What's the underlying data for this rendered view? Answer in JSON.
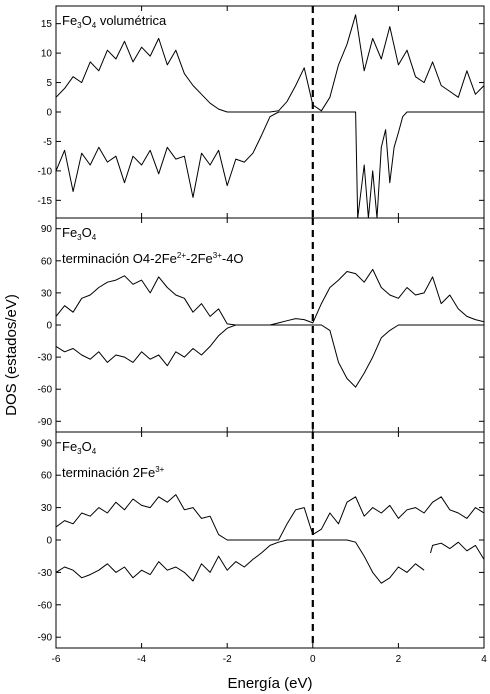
{
  "chart_data": {
    "type": "line",
    "xlabel": "Energía (eV)",
    "ylabel": "DOS (estados/eV)",
    "xlim": [
      -6,
      4
    ],
    "x_ticks": [
      "-6",
      "-4",
      "-2",
      "0",
      "2",
      "4"
    ],
    "reference_line": {
      "x": 0,
      "style": "dashed"
    },
    "legend": "none",
    "grid": false,
    "panels": [
      {
        "label_parts": [
          "Fe",
          "3",
          "O",
          "4",
          " volumétrica"
        ],
        "label_line2_parts": [],
        "ylim": [
          -18,
          18
        ],
        "y_ticks": [
          "-15",
          "-10",
          "-5",
          "0",
          "5",
          "10",
          "15"
        ],
        "series": [
          {
            "spin": "up",
            "segments": [
              {
                "x": [
                  -6.0,
                  -5.8,
                  -5.6,
                  -5.4,
                  -5.2,
                  -5.0,
                  -4.8,
                  -4.6,
                  -4.4,
                  -4.2,
                  -4.0,
                  -3.8,
                  -3.6,
                  -3.4,
                  -3.2,
                  -3.0,
                  -2.8,
                  -2.6,
                  -2.4,
                  -2.2,
                  -2.0,
                  -1.8,
                  -1.6,
                  -1.4,
                  -1.2,
                  -1.0,
                  -0.8,
                  -0.6,
                  -0.4,
                  -0.2,
                  0.0,
                  0.2,
                  0.4,
                  0.6,
                  0.8,
                  1.0,
                  1.2,
                  1.4,
                  1.6,
                  1.8,
                  2.0,
                  2.2,
                  2.4,
                  2.6,
                  2.8,
                  3.0,
                  3.2,
                  3.4,
                  3.6,
                  3.8,
                  4.0
                ],
                "y": [
                  2.5,
                  4.0,
                  6.0,
                  5.0,
                  8.5,
                  7.0,
                  10.5,
                  9.0,
                  12.0,
                  8.5,
                  11.0,
                  9.5,
                  12.5,
                  8.0,
                  10.5,
                  6.5,
                  4.5,
                  3.0,
                  1.5,
                  0.5,
                  0.0,
                  0.0,
                  0.0,
                  0.0,
                  0.0,
                  0.0,
                  0.2,
                  1.8,
                  4.5,
                  7.5,
                  1.2,
                  0.2,
                  2.5,
                  8.0,
                  11.5,
                  16.5,
                  7.0,
                  12.5,
                  9.0,
                  14.5,
                  8.0,
                  10.5,
                  6.0,
                  5.0,
                  8.5,
                  4.5,
                  3.5,
                  2.5,
                  7.0,
                  3.0,
                  4.5
                ]
              }
            ]
          },
          {
            "spin": "down",
            "segments": [
              {
                "x": [
                  -6.0,
                  -5.8,
                  -5.6,
                  -5.4,
                  -5.2,
                  -5.0,
                  -4.8,
                  -4.6,
                  -4.4,
                  -4.2,
                  -4.0,
                  -3.8,
                  -3.6,
                  -3.4,
                  -3.2,
                  -3.0,
                  -2.8,
                  -2.6,
                  -2.4,
                  -2.2,
                  -2.0,
                  -1.8,
                  -1.6,
                  -1.4,
                  -1.2,
                  -1.0,
                  -0.8,
                  -0.6,
                  -0.4,
                  -0.2,
                  0.0,
                  0.2,
                  0.4,
                  0.6,
                  0.8,
                  1.0,
                  1.05,
                  1.2,
                  1.3,
                  1.4,
                  1.5,
                  1.6,
                  1.7,
                  1.8,
                  1.9,
                  2.0,
                  2.1,
                  2.2,
                  2.4,
                  2.6,
                  2.8,
                  3.0,
                  3.2,
                  3.4,
                  3.6,
                  3.8,
                  4.0
                ],
                "y": [
                  -10.0,
                  -6.5,
                  -13.5,
                  -7.0,
                  -9.0,
                  -6.0,
                  -8.5,
                  -7.5,
                  -12.0,
                  -7.5,
                  -9.0,
                  -6.5,
                  -10.5,
                  -6.0,
                  -8.0,
                  -7.5,
                  -14.5,
                  -7.0,
                  -9.0,
                  -6.5,
                  -12.5,
                  -8.0,
                  -8.5,
                  -7.0,
                  -4.0,
                  -0.8,
                  0.0,
                  0.0,
                  0.0,
                  0.0,
                  0.0,
                  0.0,
                  0.0,
                  0.0,
                  0.0,
                  0.0,
                  -18.0,
                  -9.0,
                  -18.0,
                  -10.0,
                  -18.0,
                  -6.0,
                  -3.0,
                  -12.0,
                  -6.0,
                  -3.5,
                  -0.8,
                  0.0,
                  0.0,
                  0.0,
                  0.0,
                  0.0,
                  0.0,
                  0.0,
                  0.0,
                  0.0,
                  0.0
                ]
              }
            ]
          }
        ]
      },
      {
        "label_parts": [
          "Fe",
          "3",
          "O",
          "4"
        ],
        "label_line2_parts": [
          "terminación O4-2Fe",
          "2+",
          "-2Fe",
          "3+",
          "-4O"
        ],
        "ylim": [
          -100,
          100
        ],
        "y_ticks": [
          "-90",
          "-60",
          "-30",
          "0",
          "30",
          "60",
          "90"
        ],
        "series": [
          {
            "spin": "up",
            "segments": [
              {
                "x": [
                  -6.0,
                  -5.8,
                  -5.6,
                  -5.4,
                  -5.2,
                  -5.0,
                  -4.8,
                  -4.6,
                  -4.4,
                  -4.2,
                  -4.0,
                  -3.8,
                  -3.6,
                  -3.4,
                  -3.2,
                  -3.0,
                  -2.8,
                  -2.6,
                  -2.4,
                  -2.2,
                  -2.0,
                  -1.8,
                  -1.6,
                  -1.4,
                  -1.2,
                  -1.0,
                  -0.8,
                  -0.6,
                  -0.4,
                  -0.2,
                  0.0,
                  0.2,
                  0.4,
                  0.6,
                  0.8,
                  1.0,
                  1.2,
                  1.4,
                  1.6,
                  1.8,
                  2.0,
                  2.2,
                  2.4,
                  2.6,
                  2.8,
                  3.0,
                  3.2,
                  3.4,
                  3.6,
                  3.8,
                  4.0
                ],
                "y": [
                  8,
                  18,
                  12,
                  25,
                  28,
                  35,
                  40,
                  42,
                  46,
                  38,
                  42,
                  30,
                  45,
                  35,
                  28,
                  25,
                  12,
                  20,
                  8,
                  15,
                  1,
                  0,
                  0,
                  0,
                  0,
                  0,
                  2,
                  4,
                  6,
                  5,
                  2,
                  20,
                  35,
                  42,
                  50,
                  48,
                  40,
                  52,
                  35,
                  28,
                  25,
                  35,
                  28,
                  30,
                  45,
                  20,
                  28,
                  15,
                  8,
                  5,
                  3
                ]
              }
            ]
          },
          {
            "spin": "down",
            "segments": [
              {
                "x": [
                  -6.0,
                  -5.8,
                  -5.6,
                  -5.4,
                  -5.2,
                  -5.0,
                  -4.8,
                  -4.6,
                  -4.4,
                  -4.2,
                  -4.0,
                  -3.8,
                  -3.6,
                  -3.4,
                  -3.2,
                  -3.0,
                  -2.8,
                  -2.6,
                  -2.4,
                  -2.2,
                  -2.0,
                  -1.8,
                  -1.6,
                  -1.4,
                  -1.2,
                  -1.0,
                  -0.8,
                  -0.6,
                  -0.4,
                  -0.2,
                  0.0,
                  0.2,
                  0.4,
                  0.6,
                  0.8,
                  1.0,
                  1.2,
                  1.4,
                  1.6,
                  1.8,
                  2.0,
                  2.2,
                  2.4,
                  2.6,
                  2.8,
                  3.0,
                  3.2,
                  3.4,
                  3.6,
                  3.8,
                  4.0
                ],
                "y": [
                  -20,
                  -25,
                  -22,
                  -28,
                  -32,
                  -25,
                  -35,
                  -28,
                  -30,
                  -35,
                  -25,
                  -32,
                  -28,
                  -38,
                  -25,
                  -30,
                  -22,
                  -28,
                  -20,
                  -10,
                  -3,
                  0,
                  0,
                  0,
                  0,
                  0,
                  0,
                  0,
                  0,
                  0,
                  0,
                  0,
                  -5,
                  -35,
                  -50,
                  -58,
                  -45,
                  -30,
                  -12,
                  -5,
                  0,
                  0,
                  0,
                  0,
                  0,
                  0,
                  0,
                  0,
                  0,
                  0,
                  0
                ]
              }
            ]
          }
        ]
      },
      {
        "label_parts": [
          "Fe",
          "3",
          "O",
          "4"
        ],
        "label_line2_parts": [
          "terminación 2Fe",
          "3+"
        ],
        "ylim": [
          -100,
          100
        ],
        "y_ticks": [
          "-90",
          "-60",
          "-30",
          "0",
          "30",
          "60",
          "90"
        ],
        "series": [
          {
            "spin": "up",
            "segments": [
              {
                "x": [
                  -6.0,
                  -5.8,
                  -5.6,
                  -5.4,
                  -5.2,
                  -5.0,
                  -4.8,
                  -4.6,
                  -4.4,
                  -4.2,
                  -4.0,
                  -3.8,
                  -3.6,
                  -3.4,
                  -3.2,
                  -3.0,
                  -2.8,
                  -2.6,
                  -2.4,
                  -2.2,
                  -2.0,
                  -1.8,
                  -1.6,
                  -1.4,
                  -1.2,
                  -1.0,
                  -0.8,
                  -0.6,
                  -0.4,
                  -0.2,
                  0.0,
                  0.2,
                  0.4,
                  0.6,
                  0.8,
                  1.0,
                  1.2,
                  1.4,
                  1.6,
                  1.8,
                  2.0,
                  2.2,
                  2.4,
                  2.6,
                  2.8,
                  3.0,
                  3.2,
                  3.4,
                  3.6,
                  3.8,
                  4.0
                ],
                "y": [
                  12,
                  18,
                  15,
                  25,
                  22,
                  30,
                  25,
                  35,
                  28,
                  38,
                  32,
                  30,
                  40,
                  35,
                  42,
                  28,
                  30,
                  20,
                  22,
                  5,
                  0,
                  0,
                  0,
                  0,
                  0,
                  0,
                  0,
                  15,
                  28,
                  30,
                  5,
                  10,
                  25,
                  15,
                  35,
                  40,
                  22,
                  30,
                  25,
                  32,
                  20,
                  28,
                  30,
                  25,
                  35,
                  40,
                  28,
                  25,
                  20,
                  30,
                  25
                ]
              }
            ]
          },
          {
            "spin": "down",
            "segments": [
              {
                "x": [
                  -6.0,
                  -5.8,
                  -5.6,
                  -5.4,
                  -5.2,
                  -5.0,
                  -4.8,
                  -4.6,
                  -4.4,
                  -4.2,
                  -4.0,
                  -3.8,
                  -3.6,
                  -3.4,
                  -3.2,
                  -3.0,
                  -2.8,
                  -2.6,
                  -2.4,
                  -2.2,
                  -2.0,
                  -1.8,
                  -1.6,
                  -1.4,
                  -1.2,
                  -1.0,
                  -0.8,
                  -0.6,
                  -0.4,
                  -0.2,
                  0.0,
                  0.2,
                  0.4,
                  0.6,
                  0.8,
                  1.0,
                  1.2,
                  1.4,
                  1.6,
                  1.8,
                  2.0,
                  2.2,
                  2.4,
                  2.6
                ],
                "y": [
                  -30,
                  -25,
                  -28,
                  -35,
                  -32,
                  -28,
                  -22,
                  -30,
                  -25,
                  -35,
                  -28,
                  -32,
                  -20,
                  -28,
                  -25,
                  -30,
                  -38,
                  -22,
                  -30,
                  -15,
                  -28,
                  -20,
                  -25,
                  -18,
                  -12,
                  -5,
                  -2,
                  0,
                  0,
                  0,
                  0,
                  0,
                  0,
                  0,
                  0,
                  -2,
                  -15,
                  -30,
                  -40,
                  -35,
                  -25,
                  -30,
                  -22,
                  -28
                ]
              },
              {
                "x": [
                  2.75,
                  2.8,
                  3.0,
                  3.2,
                  3.4,
                  3.6,
                  3.8,
                  4.0
                ],
                "y": [
                  -12,
                  -5,
                  -3,
                  -8,
                  -2,
                  -10,
                  -5,
                  -18
                ]
              }
            ]
          }
        ]
      }
    ]
  }
}
